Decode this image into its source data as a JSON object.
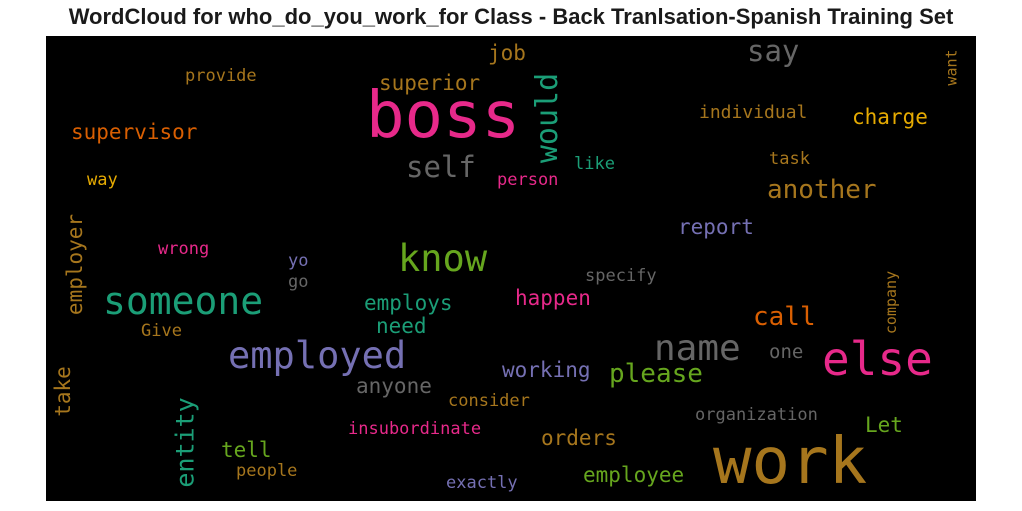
{
  "title": "WordCloud for who_do_you_work_for Class - Back Tranlsation-Spanish Training Set",
  "colors": {
    "background": "#000000",
    "pink": "#e7298a",
    "green": "#1b9e77",
    "olive": "#66a61e",
    "brown": "#a6761d",
    "orange": "#d95f02",
    "purple": "#7570b3",
    "gold": "#e6ab02",
    "gray": "#666666"
  },
  "words": [
    {
      "id": "boss",
      "text": "boss"
    },
    {
      "id": "work",
      "text": "work"
    },
    {
      "id": "else",
      "text": "else"
    },
    {
      "id": "employed",
      "text": "employed"
    },
    {
      "id": "someone",
      "text": "someone"
    },
    {
      "id": "know",
      "text": "know"
    },
    {
      "id": "name",
      "text": "name"
    },
    {
      "id": "would",
      "text": "would"
    },
    {
      "id": "say",
      "text": "say"
    },
    {
      "id": "another",
      "text": "another"
    },
    {
      "id": "self",
      "text": "self"
    },
    {
      "id": "please",
      "text": "please"
    },
    {
      "id": "call",
      "text": "call"
    },
    {
      "id": "superior",
      "text": "superior"
    },
    {
      "id": "supervisor",
      "text": "supervisor"
    },
    {
      "id": "entity",
      "text": "entity"
    },
    {
      "id": "employer",
      "text": "employer"
    },
    {
      "id": "charge",
      "text": "charge"
    },
    {
      "id": "job",
      "text": "job"
    },
    {
      "id": "report",
      "text": "report"
    },
    {
      "id": "employee",
      "text": "employee"
    },
    {
      "id": "orders",
      "text": "orders"
    },
    {
      "id": "working",
      "text": "working"
    },
    {
      "id": "employs",
      "text": "employs"
    },
    {
      "id": "happen",
      "text": "happen"
    },
    {
      "id": "need",
      "text": "need"
    },
    {
      "id": "anyone",
      "text": "anyone"
    },
    {
      "id": "tell",
      "text": "tell"
    },
    {
      "id": "take",
      "text": "take"
    },
    {
      "id": "let",
      "text": "Let"
    },
    {
      "id": "one",
      "text": "one"
    },
    {
      "id": "individual",
      "text": "individual"
    },
    {
      "id": "provide",
      "text": "provide"
    },
    {
      "id": "task",
      "text": "task"
    },
    {
      "id": "like",
      "text": "like"
    },
    {
      "id": "person",
      "text": "person"
    },
    {
      "id": "way",
      "text": "way"
    },
    {
      "id": "wrong",
      "text": "wrong"
    },
    {
      "id": "yo",
      "text": "yo"
    },
    {
      "id": "go",
      "text": "go"
    },
    {
      "id": "specify",
      "text": "specify"
    },
    {
      "id": "give",
      "text": "Give"
    },
    {
      "id": "consider",
      "text": "consider"
    },
    {
      "id": "insubordinate",
      "text": "insubordinate"
    },
    {
      "id": "organization",
      "text": "organization"
    },
    {
      "id": "company",
      "text": "company"
    },
    {
      "id": "people",
      "text": "people"
    },
    {
      "id": "exactly",
      "text": "exactly"
    },
    {
      "id": "want",
      "text": "want"
    }
  ]
}
